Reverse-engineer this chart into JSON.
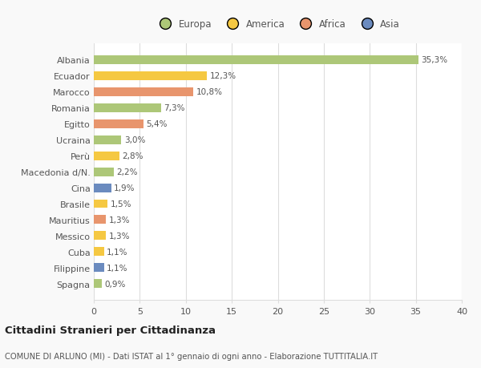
{
  "countries": [
    "Albania",
    "Ecuador",
    "Marocco",
    "Romania",
    "Egitto",
    "Ucraina",
    "Perù",
    "Macedonia d/N.",
    "Cina",
    "Brasile",
    "Mauritius",
    "Messico",
    "Cuba",
    "Filippine",
    "Spagna"
  ],
  "values": [
    35.3,
    12.3,
    10.8,
    7.3,
    5.4,
    3.0,
    2.8,
    2.2,
    1.9,
    1.5,
    1.3,
    1.3,
    1.1,
    1.1,
    0.9
  ],
  "colors": [
    "#adc778",
    "#f5c842",
    "#e8956d",
    "#adc778",
    "#e8956d",
    "#adc778",
    "#f5c842",
    "#adc778",
    "#6b8bbf",
    "#f5c842",
    "#e8956d",
    "#f5c842",
    "#f5c842",
    "#6b8bbf",
    "#adc778"
  ],
  "legend_labels": [
    "Europa",
    "America",
    "Africa",
    "Asia"
  ],
  "legend_colors": [
    "#adc778",
    "#f5c842",
    "#e8956d",
    "#6b8bbf"
  ],
  "title": "Cittadini Stranieri per Cittadinanza",
  "subtitle": "COMUNE DI ARLUNO (MI) - Dati ISTAT al 1° gennaio di ogni anno - Elaborazione TUTTITALIA.IT",
  "xlim": [
    0,
    40
  ],
  "xticks": [
    0,
    5,
    10,
    15,
    20,
    25,
    30,
    35,
    40
  ],
  "background_color": "#f9f9f9",
  "bar_background": "#ffffff",
  "grid_color": "#dddddd",
  "text_color": "#555555"
}
